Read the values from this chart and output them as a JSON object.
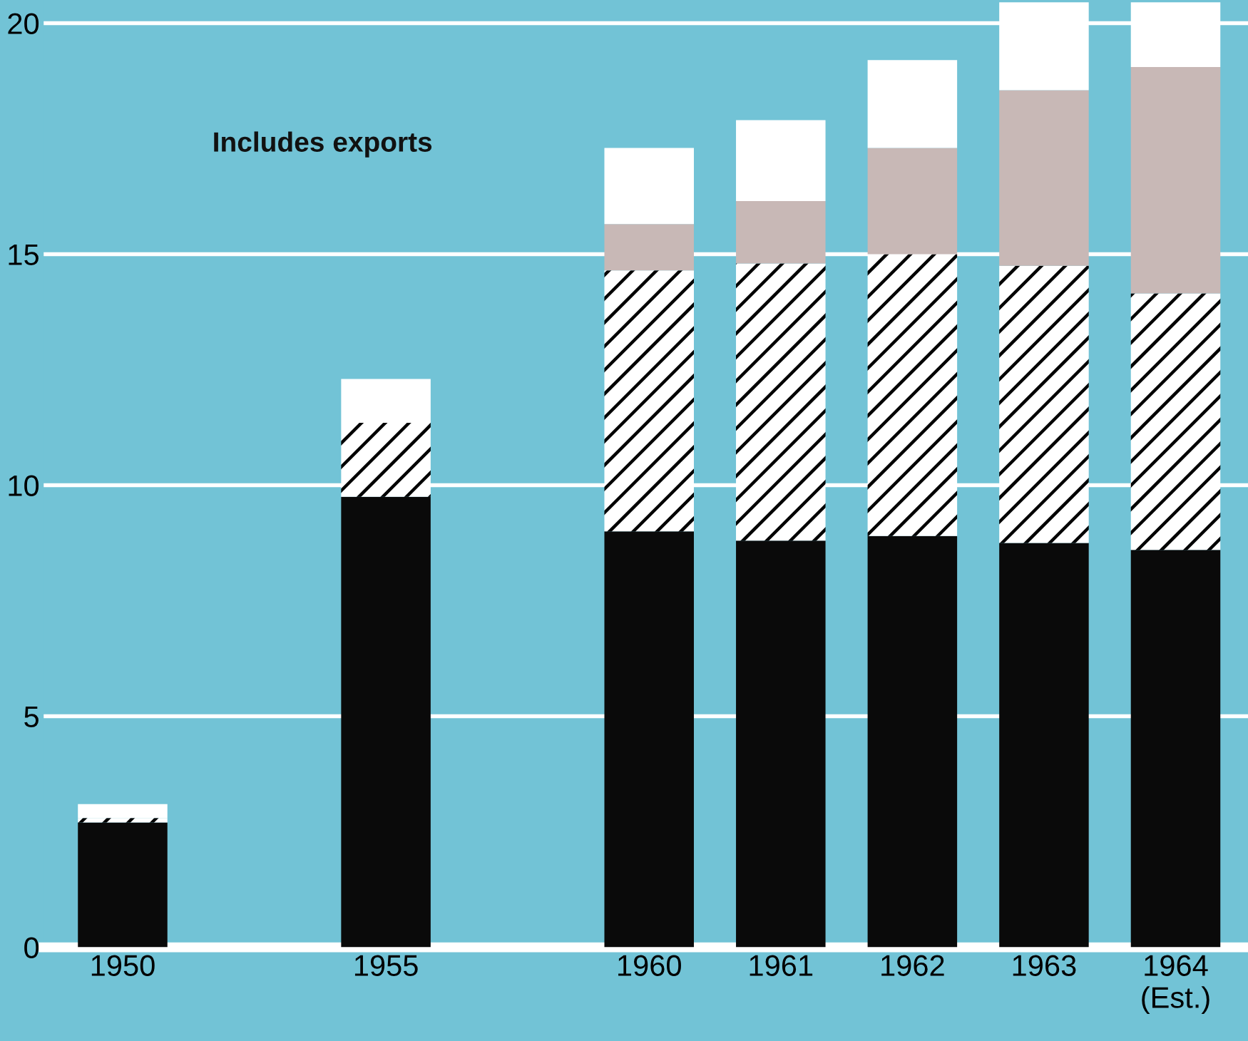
{
  "chart_data": {
    "type": "bar",
    "stacked": true,
    "categories": [
      "1950",
      null,
      "1955",
      null,
      "1960",
      "1961",
      "1962",
      "1963",
      "1964\n(Est.)"
    ],
    "series": [
      {
        "color": "#0a0a0a",
        "values": [
          2.7,
          null,
          9.75,
          null,
          9.0,
          8.8,
          8.9,
          8.75,
          8.6
        ]
      },
      {
        "color": "#ffffff",
        "values": [
          0.1,
          null,
          1.6,
          null,
          5.65,
          6.0,
          6.1,
          6.0,
          5.55
        ]
      },
      {
        "color": "#c8b8b6",
        "values": [
          0,
          null,
          0,
          null,
          1.0,
          1.35,
          2.3,
          3.8,
          4.9
        ]
      },
      {
        "color": "#ffffff",
        "values": [
          0.3,
          null,
          0.95,
          null,
          1.65,
          1.75,
          1.9,
          1.9,
          1.4
        ]
      }
    ],
    "ylim": [
      0,
      20.5
    ],
    "yticks": [
      0,
      5,
      10,
      15,
      20
    ],
    "grid": "y",
    "annotations": [
      "Includes exports"
    ]
  }
}
